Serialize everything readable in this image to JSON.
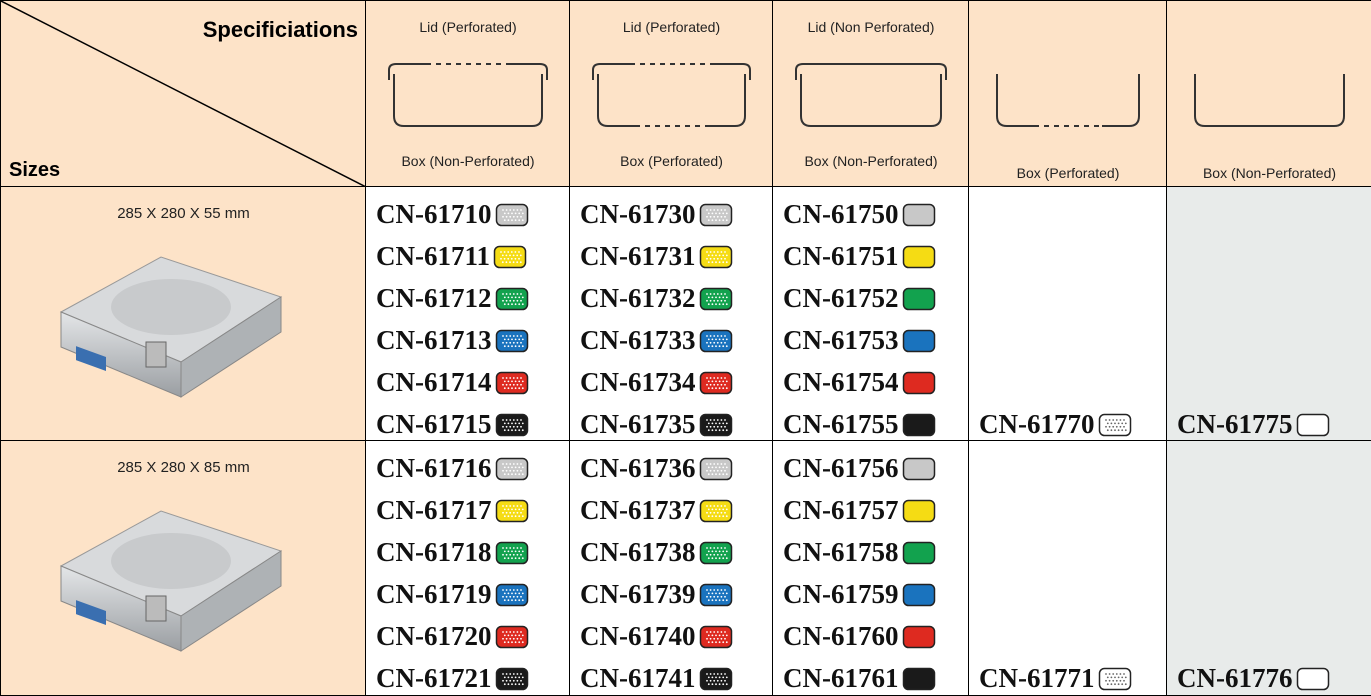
{
  "header": {
    "corner_top": "Specificiations",
    "corner_bottom": "Sizes",
    "columns": [
      {
        "top": "Lid (Perforated)",
        "bottom": "Box (Non-Perforated)"
      },
      {
        "top": "Lid (Perforated)",
        "bottom": "Box (Perforated)"
      },
      {
        "top": "Lid (Non Perforated)",
        "bottom": "Box (Non-Perforated)"
      },
      {
        "bottom": "Box (Perforated)"
      },
      {
        "bottom": "Box (Non-Perforated)"
      }
    ]
  },
  "rows": [
    {
      "size": "285 X 280 X 55 mm",
      "codes": [
        [
          "CN-61710",
          "CN-61711",
          "CN-61712",
          "CN-61713",
          "CN-61714",
          "CN-61715"
        ],
        [
          "CN-61730",
          "CN-61731",
          "CN-61732",
          "CN-61733",
          "CN-61734",
          "CN-61735"
        ],
        [
          "CN-61750",
          "CN-61751",
          "CN-61752",
          "CN-61753",
          "CN-61754",
          "CN-61755"
        ],
        [
          "CN-61770"
        ],
        [
          "CN-61775"
        ]
      ]
    },
    {
      "size": "285 X 280 X 85 mm",
      "codes": [
        [
          "CN-61716",
          "CN-61717",
          "CN-61718",
          "CN-61719",
          "CN-61720",
          "CN-61721"
        ],
        [
          "CN-61736",
          "CN-61737",
          "CN-61738",
          "CN-61739",
          "CN-61740",
          "CN-61741"
        ],
        [
          "CN-61756",
          "CN-61757",
          "CN-61758",
          "CN-61759",
          "CN-61760",
          "CN-61761"
        ],
        [
          "CN-61771"
        ],
        [
          "CN-61776"
        ]
      ]
    }
  ],
  "swatch_colors": [
    "#c8c8c8",
    "#f5dc14",
    "#12a24e",
    "#1a73be",
    "#de2a20",
    "#1a1a1a"
  ]
}
